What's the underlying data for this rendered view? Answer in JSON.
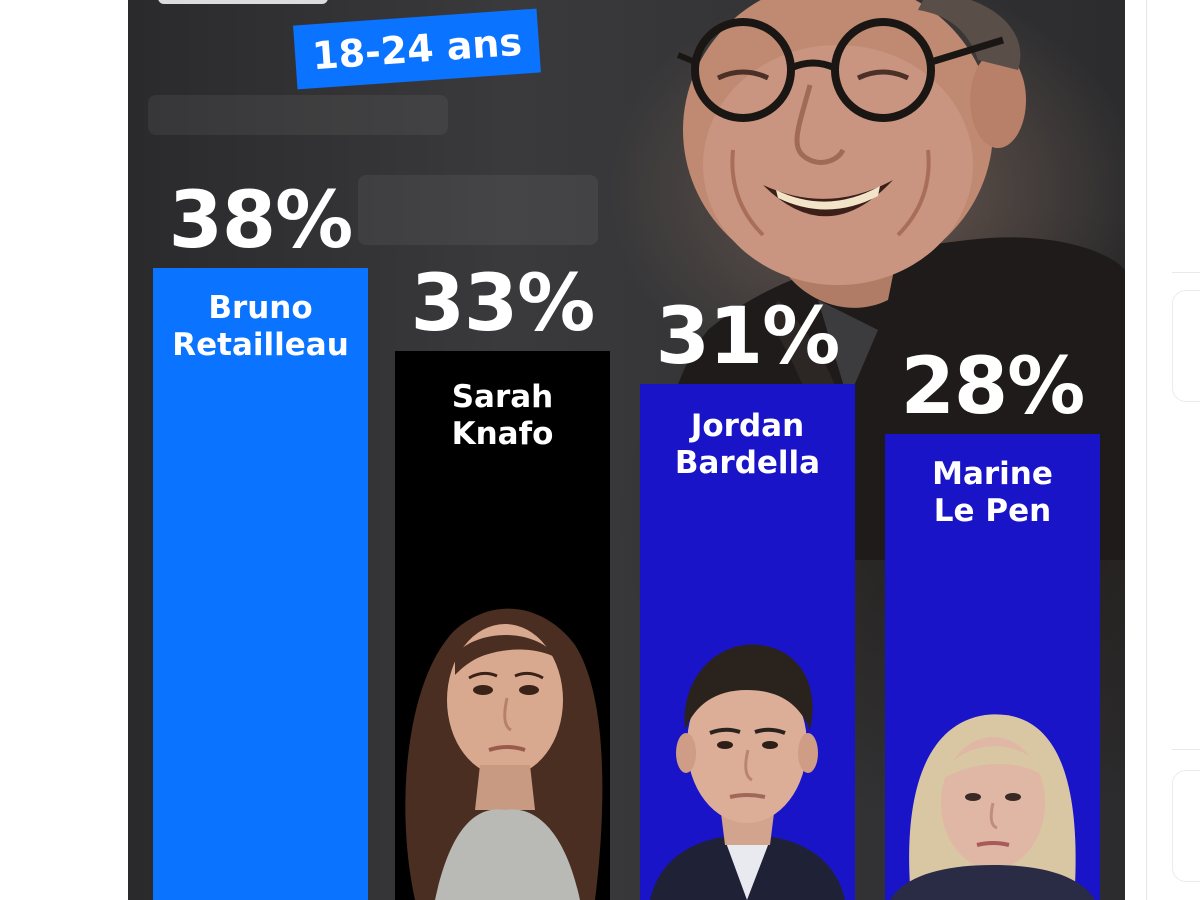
{
  "header": {
    "subtitle": "18-24 ans"
  },
  "chart_data": {
    "type": "bar",
    "categories": [
      "Bruno Retailleau",
      "Sarah Knafo",
      "Jordan Bardella",
      "Marine Le Pen"
    ],
    "series": [
      {
        "values": [
          38,
          33,
          31,
          28
        ]
      }
    ],
    "value_labels": [
      "38%",
      "33%",
      "31%",
      "28%"
    ],
    "bar_names": [
      [
        "Bruno",
        "Retailleau"
      ],
      [
        "Sarah",
        "Knafo"
      ],
      [
        "Jordan",
        "Bardella"
      ],
      [
        "Marine",
        "Le Pen"
      ]
    ],
    "colors": [
      "#0a73ff",
      "#000000",
      "#1a14c9",
      "#1a14c9"
    ],
    "ylim": [
      0,
      38
    ],
    "grid": false,
    "legend": "none"
  },
  "icons": [
    "portrait-bruno-retailleau",
    "portrait-sarah-knafo",
    "portrait-jordan-bardella",
    "portrait-marine-le-pen"
  ]
}
